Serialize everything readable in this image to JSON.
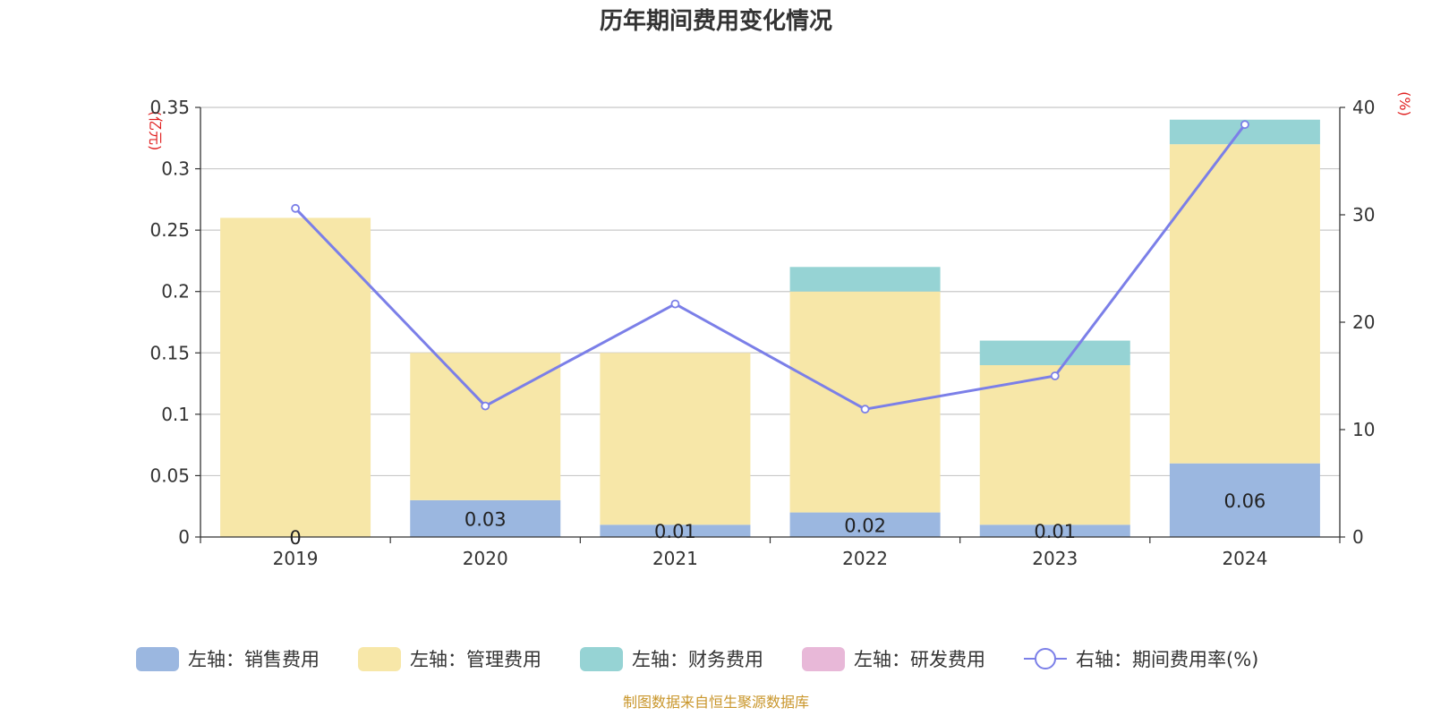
{
  "chart_data": {
    "type": "bar",
    "title": "历年期间费用变化情况",
    "categories": [
      "2019",
      "2020",
      "2021",
      "2022",
      "2023",
      "2024"
    ],
    "left_axis": {
      "unit": "(亿元)",
      "min": 0,
      "max": 0.35,
      "ticks": [
        "0",
        "0.05",
        "0.1",
        "0.15",
        "0.2",
        "0.25",
        "0.3",
        "0.35"
      ]
    },
    "right_axis": {
      "unit": "(%)",
      "min": 0,
      "max": 40,
      "ticks": [
        "0",
        "10",
        "20",
        "30",
        "40"
      ]
    },
    "grid": true,
    "stacked": true,
    "legend_position": "bottom",
    "series": [
      {
        "name": "左轴：销售费用",
        "axis": "left",
        "type": "bar",
        "color": "#9bb7e0",
        "values": [
          0,
          0.03,
          0.01,
          0.02,
          0.01,
          0.06
        ],
        "labels": [
          "0",
          "0.03",
          "0.01",
          "0.02",
          "0.01",
          "0.06"
        ]
      },
      {
        "name": "左轴：管理费用",
        "axis": "left",
        "type": "bar",
        "color": "#f7e7a8",
        "values": [
          0.26,
          0.12,
          0.14,
          0.18,
          0.13,
          0.26
        ]
      },
      {
        "name": "左轴：财务费用",
        "axis": "left",
        "type": "bar",
        "color": "#96d3d4",
        "values": [
          0,
          0,
          0,
          0.02,
          0.02,
          0.02
        ]
      },
      {
        "name": "左轴：研发费用",
        "axis": "left",
        "type": "bar",
        "color": "#e8b8d8",
        "values": [
          0,
          0,
          0,
          0,
          0,
          0
        ]
      },
      {
        "name": "右轴：期间费用率(%)",
        "axis": "right",
        "type": "line",
        "color": "#7b7fe8",
        "values": [
          30.6,
          12.2,
          21.7,
          11.9,
          15.0,
          38.4
        ]
      }
    ],
    "source": "制图数据来自恒生聚源数据库"
  }
}
